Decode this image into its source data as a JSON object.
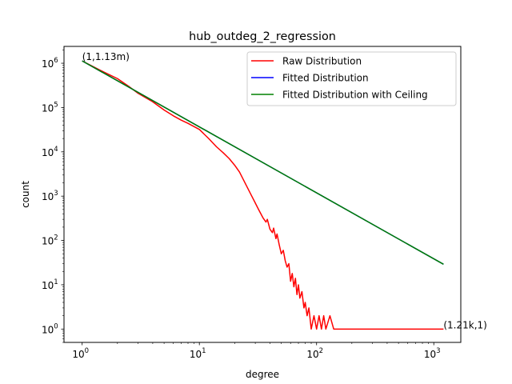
{
  "chart_data": {
    "type": "line",
    "title": "hub_outdeg_2_regression",
    "xlabel": "degree",
    "ylabel": "count",
    "xscale": "log",
    "yscale": "log",
    "xlim": [
      0.7,
      1700
    ],
    "ylim": [
      0.5,
      2400000
    ],
    "x_ticks": [
      {
        "value": 1,
        "base": "10",
        "exp": "0"
      },
      {
        "value": 10,
        "base": "10",
        "exp": "1"
      },
      {
        "value": 100,
        "base": "10",
        "exp": "2"
      },
      {
        "value": 1000,
        "base": "10",
        "exp": "3"
      }
    ],
    "y_ticks": [
      {
        "value": 1,
        "base": "10",
        "exp": "0"
      },
      {
        "value": 10,
        "base": "10",
        "exp": "1"
      },
      {
        "value": 100,
        "base": "10",
        "exp": "2"
      },
      {
        "value": 1000,
        "base": "10",
        "exp": "3"
      },
      {
        "value": 10000,
        "base": "10",
        "exp": "4"
      },
      {
        "value": 100000,
        "base": "10",
        "exp": "5"
      },
      {
        "value": 1000000,
        "base": "10",
        "exp": "6"
      }
    ],
    "grid": false,
    "legend_position": "top-right",
    "series": [
      {
        "name": "Raw Distribution",
        "color": "#ff0000",
        "points": [
          [
            1,
            1130000
          ],
          [
            1.5,
            650000
          ],
          [
            2,
            450000
          ],
          [
            2.5,
            300000
          ],
          [
            3,
            210000
          ],
          [
            4,
            135000
          ],
          [
            5,
            88000
          ],
          [
            6,
            65000
          ],
          [
            7,
            52000
          ],
          [
            8,
            44000
          ],
          [
            10,
            32000
          ],
          [
            12,
            20000
          ],
          [
            14,
            13000
          ],
          [
            16,
            9500
          ],
          [
            18,
            7000
          ],
          [
            20,
            5000
          ],
          [
            22,
            3500
          ],
          [
            25,
            1800
          ],
          [
            28,
            1000
          ],
          [
            30,
            700
          ],
          [
            32,
            500
          ],
          [
            35,
            320
          ],
          [
            37,
            260
          ],
          [
            38,
            300
          ],
          [
            40,
            180
          ],
          [
            42,
            150
          ],
          [
            43,
            190
          ],
          [
            45,
            110
          ],
          [
            46,
            140
          ],
          [
            48,
            80
          ],
          [
            50,
            50
          ],
          [
            52,
            60
          ],
          [
            54,
            35
          ],
          [
            56,
            25
          ],
          [
            58,
            30
          ],
          [
            60,
            12
          ],
          [
            62,
            18
          ],
          [
            64,
            9
          ],
          [
            66,
            14
          ],
          [
            68,
            6
          ],
          [
            70,
            10
          ],
          [
            72,
            5
          ],
          [
            75,
            7
          ],
          [
            78,
            3
          ],
          [
            80,
            4
          ],
          [
            83,
            2
          ],
          [
            86,
            3
          ],
          [
            90,
            1
          ],
          [
            95,
            2
          ],
          [
            100,
            1
          ],
          [
            105,
            2
          ],
          [
            110,
            1
          ],
          [
            115,
            2
          ],
          [
            120,
            1
          ],
          [
            130,
            2
          ],
          [
            140,
            1
          ],
          [
            1210,
            1
          ]
        ]
      },
      {
        "name": "Fitted Distribution",
        "color": "#0000ff",
        "points": [
          [
            1,
            1130000
          ],
          [
            1210,
            29
          ]
        ]
      },
      {
        "name": "Fitted Distribution with Ceiling",
        "color": "#008000",
        "points": [
          [
            1,
            1130000
          ],
          [
            1210,
            29
          ]
        ]
      }
    ],
    "annotations": [
      {
        "text": "(1,1.13m)",
        "x": 1,
        "y": 1130000,
        "anchor": "start"
      },
      {
        "text": "(1.21k,1)",
        "x": 1210,
        "y": 1,
        "anchor": "start"
      }
    ]
  }
}
